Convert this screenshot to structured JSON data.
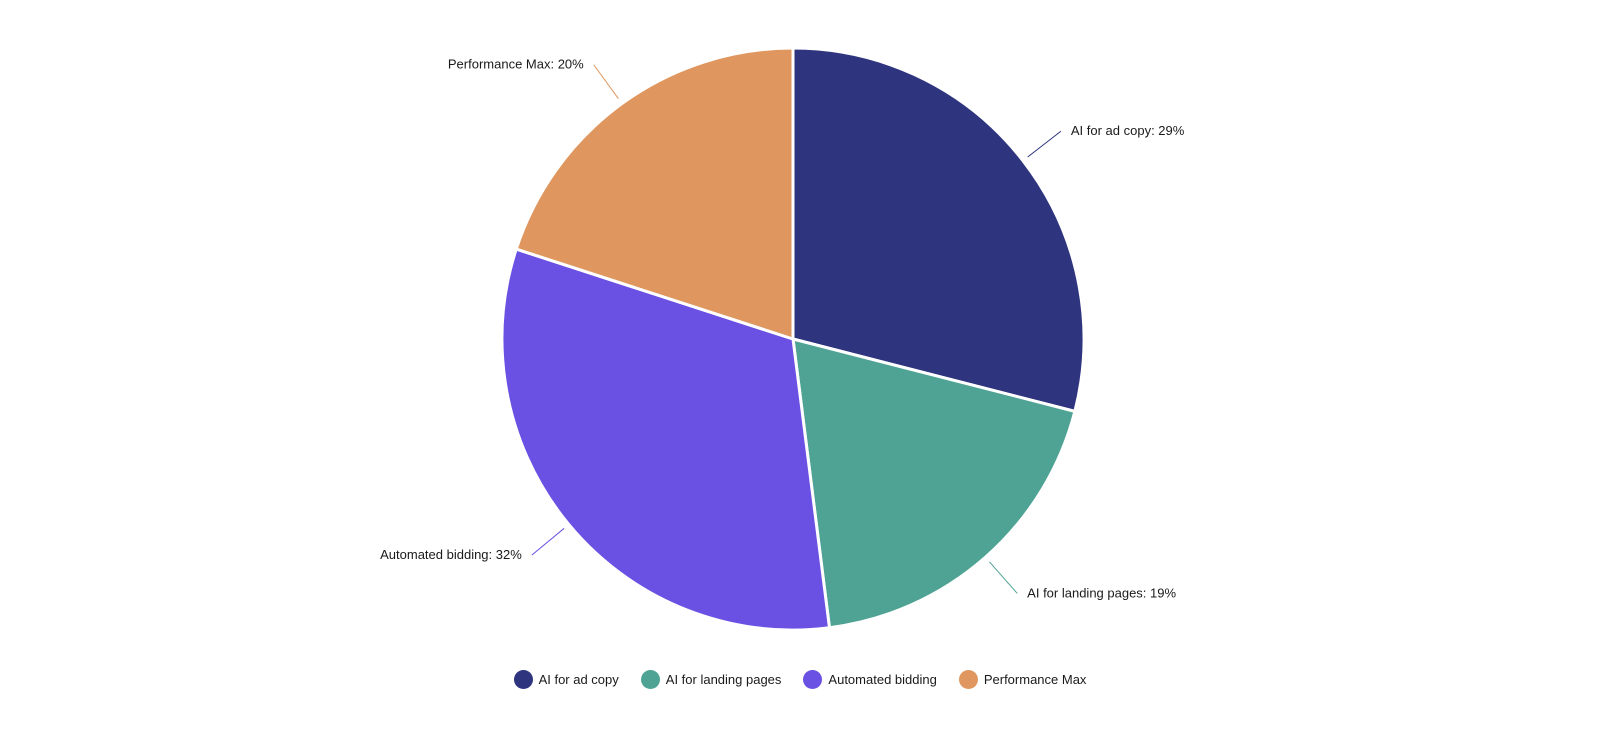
{
  "chart_data": {
    "type": "pie",
    "title": "",
    "categories": [
      "AI for ad copy",
      "AI for landing pages",
      "Automated bidding",
      "Performance Max"
    ],
    "values": [
      29,
      19,
      32,
      20
    ],
    "unit": "%",
    "colors": [
      "#2e347e",
      "#4fa394",
      "#6a51e3",
      "#df975f"
    ],
    "slice_labels": [
      "AI for ad copy: 29%",
      "AI for landing pages: 19%",
      "Automated bidding: 32%",
      "Performance Max: 20%"
    ],
    "start_angle": "12 o'clock",
    "direction": "clockwise",
    "legend_placement": "bottom-center"
  },
  "legend": {
    "items": [
      {
        "label": "AI for ad copy",
        "color": "#2e347e"
      },
      {
        "label": "AI for landing pages",
        "color": "#4fa394"
      },
      {
        "label": "Automated bidding",
        "color": "#6a51e3"
      },
      {
        "label": "Performance Max",
        "color": "#df975f"
      }
    ]
  }
}
